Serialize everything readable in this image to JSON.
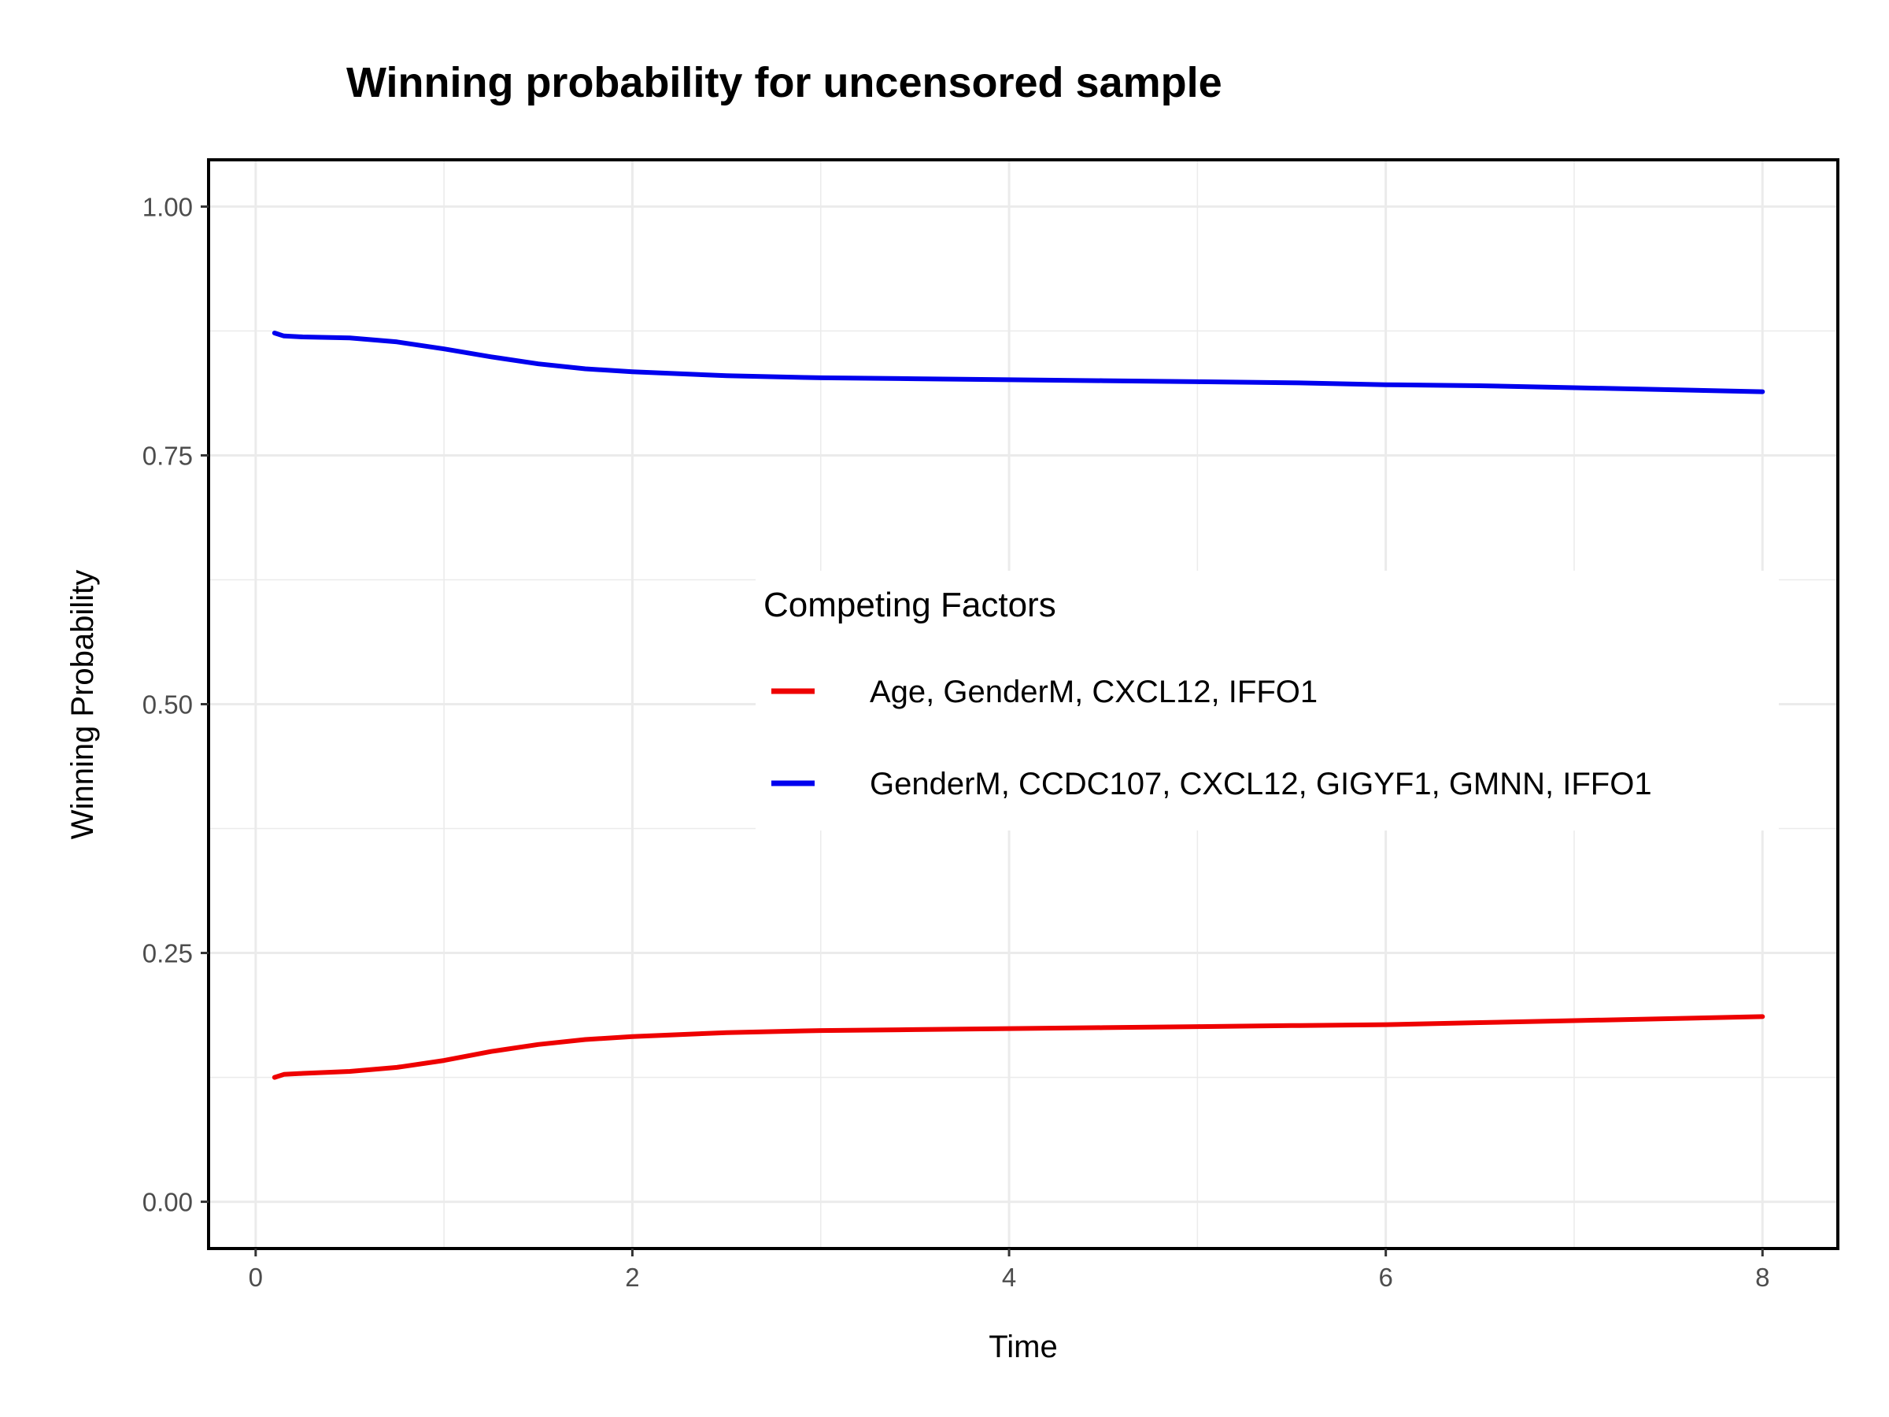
{
  "chart_data": {
    "type": "line",
    "title": "Winning probability for uncensored sample",
    "xlabel": "Time",
    "ylabel": "Winning Probability",
    "xlim": [
      -0.25,
      8.4
    ],
    "ylim": [
      -0.047,
      1.047
    ],
    "x_ticks": [
      0,
      2,
      4,
      6,
      8
    ],
    "x_tick_labels": [
      "0",
      "2",
      "4",
      "6",
      "8"
    ],
    "y_ticks": [
      0.0,
      0.25,
      0.5,
      0.75,
      1.0
    ],
    "y_tick_labels": [
      "0.00",
      "0.25",
      "0.50",
      "0.75",
      "1.00"
    ],
    "grid": true,
    "legend": {
      "title": "Competing Factors",
      "placement": "inside-center-right"
    },
    "series": [
      {
        "name": "Age, GenderM, CXCL12, IFFO1",
        "color": "#ee0000",
        "x": [
          0.1,
          0.15,
          0.25,
          0.5,
          0.75,
          1.0,
          1.25,
          1.5,
          1.75,
          2.0,
          2.5,
          3.0,
          3.5,
          4.0,
          4.5,
          5.0,
          5.5,
          6.0,
          6.5,
          7.0,
          7.5,
          8.0
        ],
        "y": [
          0.125,
          0.128,
          0.129,
          0.131,
          0.135,
          0.142,
          0.151,
          0.158,
          0.163,
          0.166,
          0.17,
          0.172,
          0.173,
          0.174,
          0.175,
          0.176,
          0.177,
          0.178,
          0.18,
          0.182,
          0.184,
          0.186
        ]
      },
      {
        "name": "GenderM, CCDC107, CXCL12, GIGYF1, GMNN, IFFO1",
        "color": "#0000ee",
        "x": [
          0.1,
          0.15,
          0.25,
          0.5,
          0.75,
          1.0,
          1.25,
          1.5,
          1.75,
          2.0,
          2.5,
          3.0,
          3.5,
          4.0,
          4.5,
          5.0,
          5.5,
          6.0,
          6.5,
          7.0,
          7.5,
          8.0
        ],
        "y": [
          0.873,
          0.87,
          0.869,
          0.868,
          0.864,
          0.857,
          0.849,
          0.842,
          0.837,
          0.834,
          0.83,
          0.828,
          0.827,
          0.826,
          0.825,
          0.824,
          0.823,
          0.821,
          0.82,
          0.818,
          0.816,
          0.814
        ]
      }
    ]
  }
}
